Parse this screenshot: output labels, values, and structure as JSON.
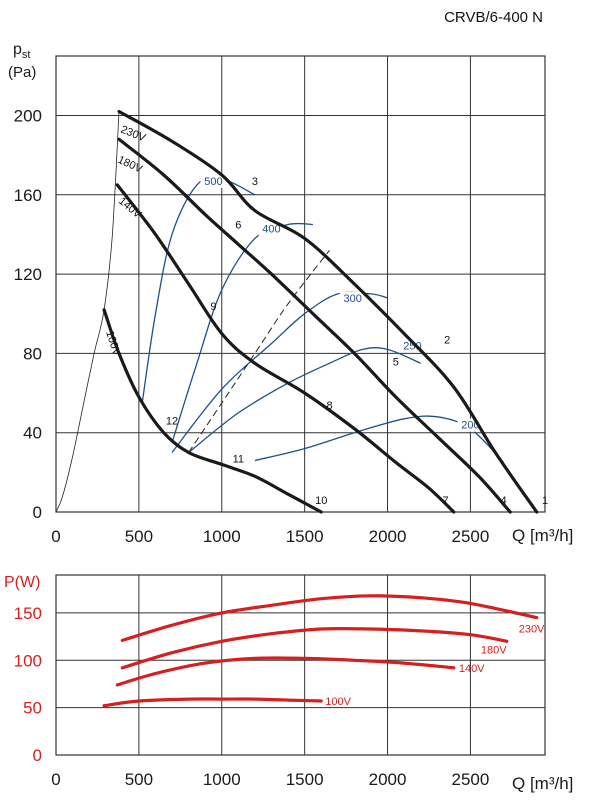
{
  "title": "CRVB/6-400 N",
  "colors": {
    "curve": "#1a1a1a",
    "iso": "#1f4f8f",
    "power": "#d61f1f",
    "grid": "#333333"
  },
  "chart_data": [
    {
      "type": "line",
      "ylabel": "p",
      "ylabel_sub": "st",
      "yunit": "(Pa)",
      "xlabel": "Q [m³/h]",
      "xlim": [
        0,
        2950
      ],
      "ylim": [
        0,
        230
      ],
      "xticks": [
        "0",
        "500",
        "1000",
        "1500",
        "2000",
        "2500"
      ],
      "yticks": [
        "0",
        "40",
        "80",
        "120",
        "160",
        "200"
      ],
      "grid": true,
      "series": [
        {
          "name": "230V",
          "x": [
            380,
            700,
            1000,
            1200,
            1500,
            1800,
            2100,
            2400,
            2650,
            2900
          ],
          "y": [
            202,
            187,
            170,
            152,
            138,
            115,
            90,
            63,
            30,
            0
          ]
        },
        {
          "name": "180V",
          "x": [
            380,
            650,
            900,
            1100,
            1300,
            1550,
            1800,
            2050,
            2300,
            2550,
            2740
          ],
          "y": [
            188,
            170,
            150,
            135,
            120,
            100,
            80,
            58,
            38,
            18,
            0
          ]
        },
        {
          "name": "140V",
          "x": [
            370,
            600,
            800,
            1000,
            1200,
            1500,
            1800,
            2050,
            2250,
            2400
          ],
          "y": [
            165,
            140,
            115,
            90,
            75,
            60,
            42,
            25,
            12,
            0
          ]
        },
        {
          "name": "100V",
          "x": [
            290,
            380,
            500,
            650,
            800,
            1000,
            1200,
            1400,
            1600
          ],
          "y": [
            102,
            80,
            58,
            40,
            30,
            24,
            18,
            9,
            0
          ]
        }
      ],
      "fan_curve_x": [
        0,
        40,
        100,
        160,
        230,
        290,
        340,
        380
      ],
      "fan_curve_y": [
        0,
        8,
        28,
        52,
        80,
        102,
        140,
        202
      ],
      "iso_lines": [
        {
          "label": "500",
          "x": [
            520,
            600,
            700,
            850,
            1000,
            1200
          ],
          "y": [
            55,
            100,
            140,
            165,
            168,
            160
          ]
        },
        {
          "label": "400",
          "x": [
            700,
            850,
            1000,
            1200,
            1400,
            1550
          ],
          "y": [
            35,
            75,
            112,
            138,
            145,
            145
          ]
        },
        {
          "label": "300",
          "x": [
            700,
            1000,
            1300,
            1500,
            1700,
            1900,
            2000
          ],
          "y": [
            30,
            62,
            85,
            100,
            110,
            110,
            108
          ]
        },
        {
          "label": "250",
          "x": [
            800,
            1100,
            1400,
            1650,
            1850,
            2000,
            2200
          ],
          "y": [
            30,
            50,
            65,
            75,
            82,
            82,
            75
          ]
        },
        {
          "label": "200",
          "x": [
            1200,
            1500,
            1800,
            2100,
            2300,
            2500,
            2700
          ],
          "y": [
            26,
            32,
            40,
            47,
            48,
            42,
            25
          ]
        }
      ],
      "dashed_line": {
        "x": [
          800,
          1000,
          1200,
          1400,
          1650
        ],
        "y": [
          30,
          55,
          80,
          105,
          132
        ]
      },
      "point_labels": [
        {
          "label": "1",
          "x": 2950,
          "y": 3
        },
        {
          "label": "2",
          "x": 2360,
          "y": 84
        },
        {
          "label": "3",
          "x": 1200,
          "y": 164
        },
        {
          "label": "4",
          "x": 2700,
          "y": 3
        },
        {
          "label": "5",
          "x": 2050,
          "y": 73
        },
        {
          "label": "6",
          "x": 1100,
          "y": 142
        },
        {
          "label": "7",
          "x": 2350,
          "y": 3
        },
        {
          "label": "8",
          "x": 1650,
          "y": 51
        },
        {
          "label": "9",
          "x": 950,
          "y": 101
        },
        {
          "label": "10",
          "x": 1600,
          "y": 3
        },
        {
          "label": "11",
          "x": 1100,
          "y": 24
        },
        {
          "label": "12",
          "x": 700,
          "y": 43
        }
      ]
    },
    {
      "type": "line",
      "ylabel": "P(W)",
      "xlabel": "Q [m³/h]",
      "xlim": [
        0,
        2950
      ],
      "ylim": [
        0,
        190
      ],
      "xticks": [
        "0",
        "500",
        "1000",
        "1500",
        "2000",
        "2500"
      ],
      "yticks": [
        "0",
        "50",
        "100",
        "150"
      ],
      "grid": true,
      "series": [
        {
          "name": "230V",
          "x": [
            400,
            700,
            1000,
            1300,
            1600,
            1900,
            2200,
            2500,
            2900
          ],
          "y": [
            121,
            137,
            150,
            158,
            165,
            168,
            166,
            160,
            145
          ]
        },
        {
          "name": "180V",
          "x": [
            400,
            700,
            1000,
            1300,
            1600,
            1900,
            2200,
            2500,
            2720
          ],
          "y": [
            92,
            108,
            120,
            128,
            133,
            133,
            131,
            127,
            120
          ]
        },
        {
          "name": "140V",
          "x": [
            370,
            600,
            900,
            1200,
            1500,
            1800,
            2100,
            2400
          ],
          "y": [
            74,
            86,
            97,
            102,
            102,
            100,
            97,
            92
          ]
        },
        {
          "name": "100V",
          "x": [
            290,
            500,
            800,
            1000,
            1200,
            1400,
            1600
          ],
          "y": [
            52,
            57,
            59,
            59,
            59,
            58,
            57
          ]
        }
      ]
    }
  ]
}
